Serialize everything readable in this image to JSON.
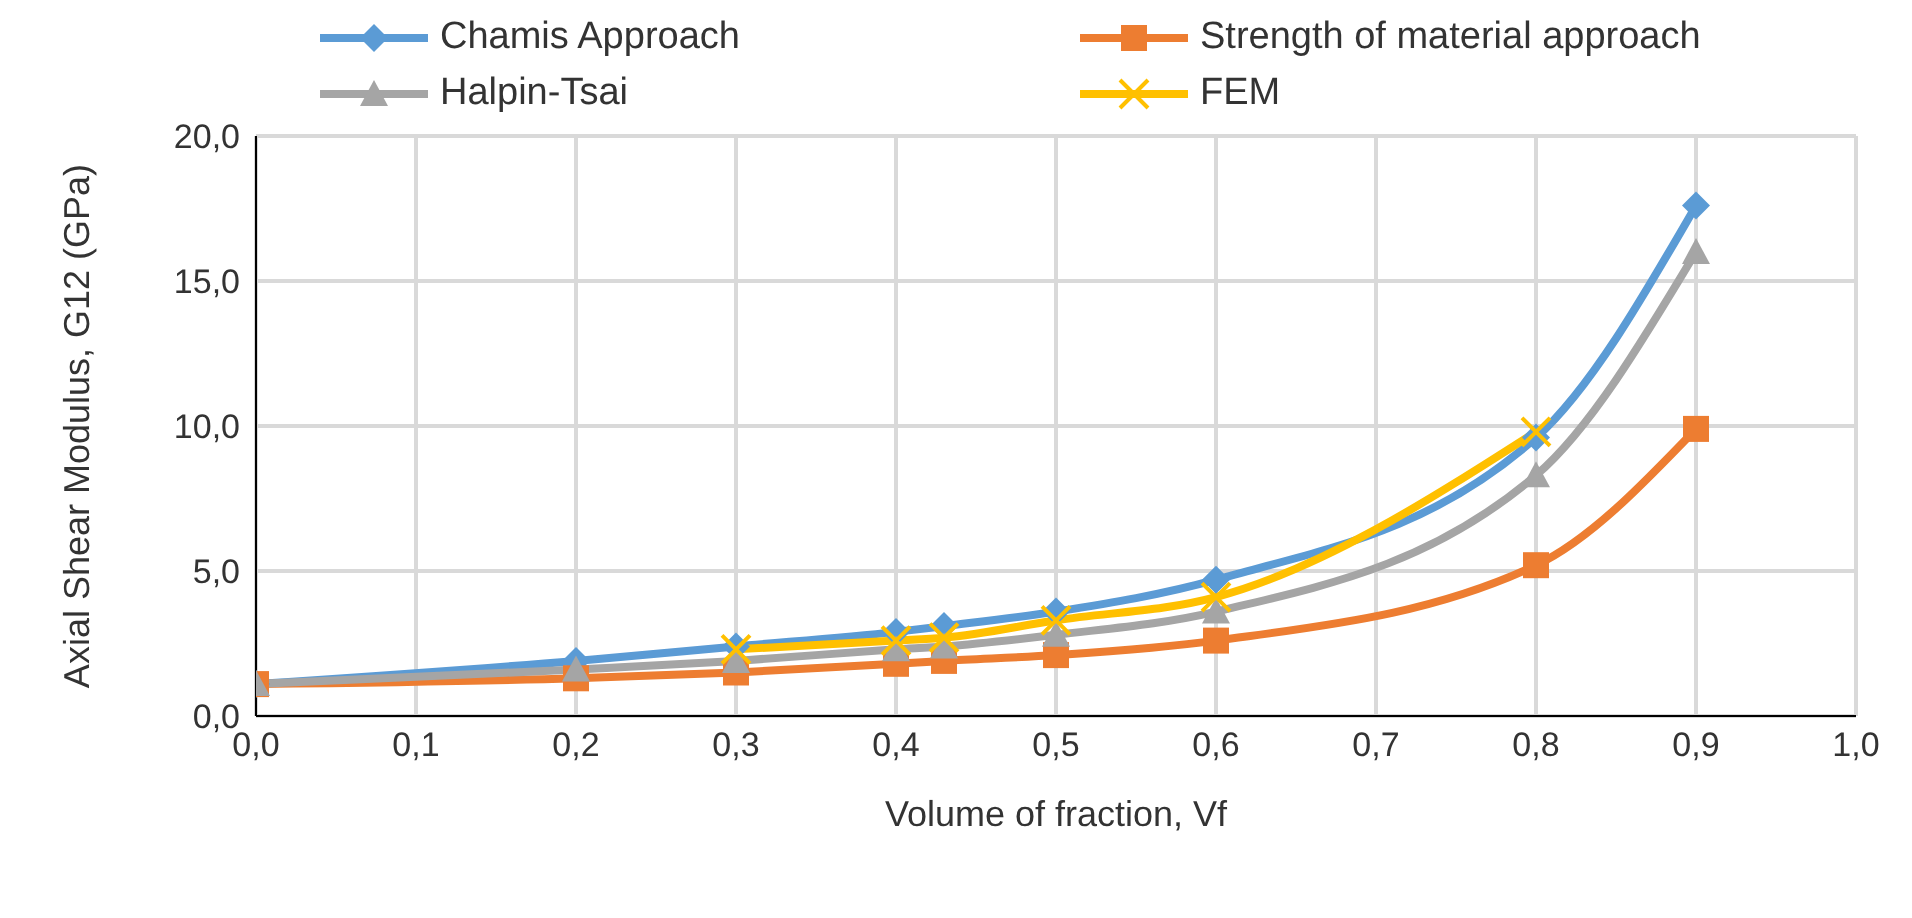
{
  "chart_data": {
    "type": "line",
    "xlabel": "Volume of fraction, Vf",
    "ylabel": "Axial Shear Modulus, G12 (GPa)",
    "xlim": [
      0,
      1
    ],
    "xticks": [
      {
        "value": 0,
        "label": "0,0"
      },
      {
        "value": 0.1,
        "label": "0,1"
      },
      {
        "value": 0.2,
        "label": "0,2"
      },
      {
        "value": 0.3,
        "label": "0,3"
      },
      {
        "value": 0.4,
        "label": "0,4"
      },
      {
        "value": 0.5,
        "label": "0,5"
      },
      {
        "value": 0.6,
        "label": "0,6"
      },
      {
        "value": 0.7,
        "label": "0,7"
      },
      {
        "value": 0.8,
        "label": "0,8"
      },
      {
        "value": 0.9,
        "label": "0,9"
      },
      {
        "value": 1,
        "label": "1,0"
      }
    ],
    "ylim": [
      0,
      20
    ],
    "yticks": [
      {
        "value": 0,
        "label": "0,0"
      },
      {
        "value": 5,
        "label": "5,0"
      },
      {
        "value": 10,
        "label": "10,0"
      },
      {
        "value": 15,
        "label": "15,0"
      },
      {
        "value": 20,
        "label": "20,0"
      }
    ],
    "grid": true,
    "legend": "top",
    "line_style": "solid",
    "series": [
      {
        "name": "Chamis Approach",
        "color": "#5b9bd5",
        "marker": "diamond",
        "x": [
          0,
          0.2,
          0.3,
          0.4,
          0.43,
          0.5,
          0.6,
          0.8,
          0.9
        ],
        "values": [
          1.1,
          1.9,
          2.4,
          2.9,
          3.1,
          3.6,
          4.7,
          9.6,
          17.6
        ]
      },
      {
        "name": "Strength of material approach",
        "color": "#ed7d31",
        "marker": "square",
        "x": [
          0,
          0.2,
          0.3,
          0.4,
          0.43,
          0.5,
          0.6,
          0.8,
          0.9
        ],
        "values": [
          1.1,
          1.3,
          1.5,
          1.8,
          1.9,
          2.1,
          2.6,
          5.2,
          9.9
        ]
      },
      {
        "name": "Halpin-Tsai",
        "color": "#a5a5a5",
        "marker": "triangle",
        "x": [
          0,
          0.2,
          0.3,
          0.4,
          0.43,
          0.5,
          0.6,
          0.8,
          0.9
        ],
        "values": [
          1.1,
          1.6,
          1.9,
          2.3,
          2.4,
          2.8,
          3.6,
          8.3,
          16.0
        ]
      },
      {
        "name": "FEM",
        "color": "#ffc000",
        "marker": "cross",
        "x": [
          0.3,
          0.4,
          0.43,
          0.5,
          0.6,
          0.8
        ],
        "values": [
          2.3,
          2.6,
          2.7,
          3.3,
          4.1,
          9.8
        ]
      }
    ]
  }
}
